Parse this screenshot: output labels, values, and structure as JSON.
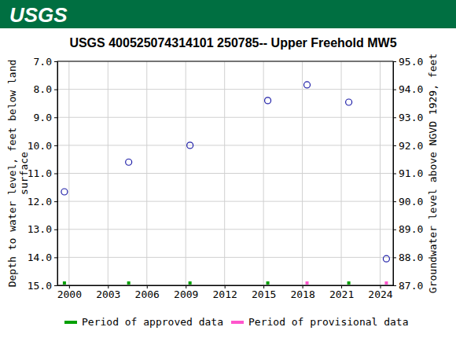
{
  "header": {
    "logo": "USGS"
  },
  "chart_data": {
    "type": "scatter",
    "title": "USGS 400525074314101 250785-- Upper Freehold MW5",
    "ylabel": "Depth to water level, feet below land\nsurface",
    "y2label": "Groundwater level above NGVD 1929, feet",
    "x": [
      1999.64,
      2004.6,
      2009.33,
      2015.33,
      2018.36,
      2021.58,
      2024.48
    ],
    "values": [
      11.66,
      10.6,
      10.0,
      8.4,
      7.84,
      8.46,
      14.05
    ],
    "color": "#1f1fa8",
    "marker": "circle",
    "xlim": [
      1999.1,
      2025.0
    ],
    "xticks": [
      2000,
      2003,
      2006,
      2009,
      2012,
      2015,
      2018,
      2021,
      2024
    ],
    "ylim": [
      15,
      7
    ],
    "yticks": [
      {
        "value": 7,
        "label": "7.0"
      },
      {
        "value": 8,
        "label": "8.0"
      },
      {
        "value": 9,
        "label": "9.0"
      },
      {
        "value": 10,
        "label": "10.0"
      },
      {
        "value": 11,
        "label": "11.0"
      },
      {
        "value": 12,
        "label": "12.0"
      },
      {
        "value": 13,
        "label": "13.0"
      },
      {
        "value": 14,
        "label": "14.0"
      },
      {
        "value": 15,
        "label": "15.0"
      }
    ],
    "y2lim": [
      87,
      95
    ],
    "y2ticks": [
      {
        "value": 87,
        "label": "87.0"
      },
      {
        "value": 88,
        "label": "88.0"
      },
      {
        "value": 89,
        "label": "89.0"
      },
      {
        "value": 90,
        "label": "90.0"
      },
      {
        "value": 91,
        "label": "91.0"
      },
      {
        "value": 92,
        "label": "92.0"
      },
      {
        "value": 93,
        "label": "93.0"
      },
      {
        "value": 94,
        "label": "94.0"
      },
      {
        "value": 95,
        "label": "95.0"
      }
    ],
    "grid": true,
    "legend": "bottom",
    "periods": [
      {
        "name": "Period of approved data",
        "color": "#00a000",
        "x": [
          1999.64,
          2004.6,
          2009.33,
          2015.33,
          2021.58
        ]
      },
      {
        "name": "Period of provisional data",
        "color": "#ff55cc",
        "x": [
          2018.36,
          2024.48
        ]
      }
    ]
  }
}
